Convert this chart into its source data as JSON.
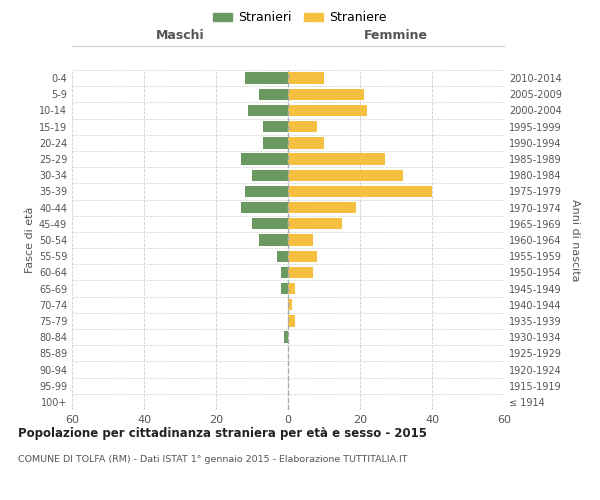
{
  "age_groups": [
    "100+",
    "95-99",
    "90-94",
    "85-89",
    "80-84",
    "75-79",
    "70-74",
    "65-69",
    "60-64",
    "55-59",
    "50-54",
    "45-49",
    "40-44",
    "35-39",
    "30-34",
    "25-29",
    "20-24",
    "15-19",
    "10-14",
    "5-9",
    "0-4"
  ],
  "birth_years": [
    "≤ 1914",
    "1915-1919",
    "1920-1924",
    "1925-1929",
    "1930-1934",
    "1935-1939",
    "1940-1944",
    "1945-1949",
    "1950-1954",
    "1955-1959",
    "1960-1964",
    "1965-1969",
    "1970-1974",
    "1975-1979",
    "1980-1984",
    "1985-1989",
    "1990-1994",
    "1995-1999",
    "2000-2004",
    "2005-2009",
    "2010-2014"
  ],
  "maschi": [
    0,
    0,
    0,
    0,
    1,
    0,
    0,
    2,
    2,
    3,
    8,
    10,
    13,
    12,
    10,
    13,
    7,
    7,
    11,
    8,
    12
  ],
  "femmine": [
    0,
    0,
    0,
    0,
    0,
    2,
    1,
    2,
    7,
    8,
    7,
    15,
    19,
    40,
    32,
    27,
    10,
    8,
    22,
    21,
    10
  ],
  "color_maschi": "#6a9a5f",
  "color_femmine": "#f5c040",
  "title": "Popolazione per cittadinanza straniera per età e sesso - 2015",
  "subtitle": "COMUNE DI TOLFA (RM) - Dati ISTAT 1° gennaio 2015 - Elaborazione TUTTITALIA.IT",
  "label_maschi_top": "Maschi",
  "label_femmine_top": "Femmine",
  "ylabel_left": "Fasce di età",
  "ylabel_right": "Anni di nascita",
  "legend_maschi": "Stranieri",
  "legend_femmine": "Straniere",
  "xlim": 60,
  "background_color": "#ffffff",
  "grid_color": "#d0d0d0"
}
